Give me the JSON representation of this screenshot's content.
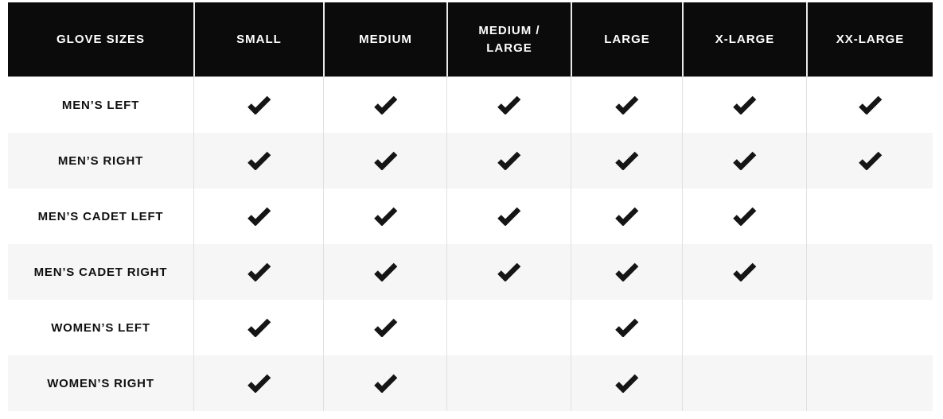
{
  "chart_data": {
    "type": "table",
    "title": "GLOVE SIZES",
    "columns": [
      "GLOVE SIZES",
      "SMALL",
      "MEDIUM",
      "MEDIUM / LARGE",
      "LARGE",
      "X-LARGE",
      "XX-LARGE"
    ],
    "rows": [
      {
        "label": "MEN’S LEFT",
        "checks": [
          true,
          true,
          true,
          true,
          true,
          true
        ]
      },
      {
        "label": "MEN’S RIGHT",
        "checks": [
          true,
          true,
          true,
          true,
          true,
          true
        ]
      },
      {
        "label": "MEN’S CADET LEFT",
        "checks": [
          true,
          true,
          true,
          true,
          true,
          false
        ]
      },
      {
        "label": "MEN’S CADET RIGHT",
        "checks": [
          true,
          true,
          true,
          true,
          true,
          false
        ]
      },
      {
        "label": "WOMEN’S LEFT",
        "checks": [
          true,
          true,
          false,
          true,
          false,
          false
        ]
      },
      {
        "label": "WOMEN’S RIGHT",
        "checks": [
          true,
          true,
          false,
          true,
          false,
          false
        ]
      }
    ],
    "check_symbol": "check-icon",
    "layout": {
      "legend_position": "none",
      "grid": "column-dividers"
    },
    "colors": {
      "header_bg": "#0b0b0b",
      "header_text": "#ffffff",
      "row_bg": "#ffffff",
      "row_alt_bg": "#f6f6f6",
      "row_label_text": "#111111",
      "check": "#151515",
      "divider": "#e0e0e0",
      "header_divider": "#e9e9e9"
    }
  }
}
